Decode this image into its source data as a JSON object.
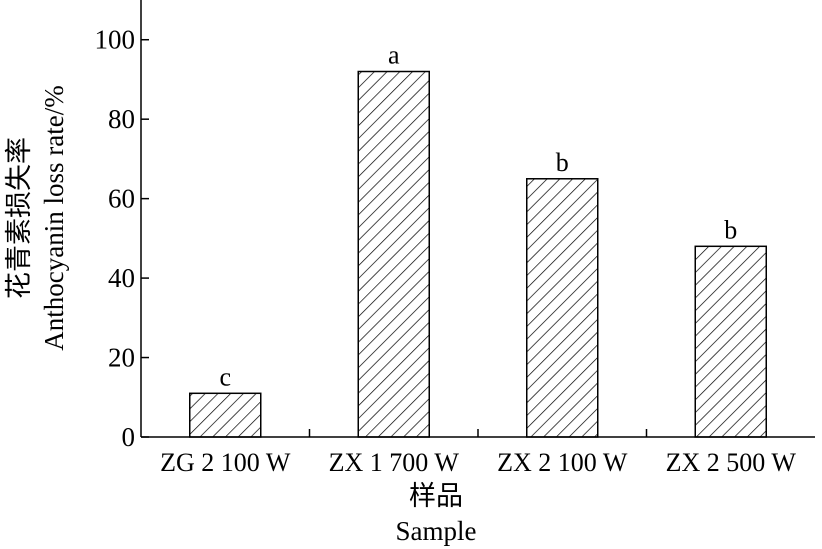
{
  "chart_data": {
    "type": "bar",
    "categories": [
      "ZG 2 100 W",
      "ZX 1 700 W",
      "ZX 2 100 W",
      "ZX 2 500 W"
    ],
    "values": [
      11,
      92,
      65,
      48
    ],
    "significance_labels": [
      "c",
      "a",
      "b",
      "b"
    ],
    "xlabel_cn": "样品",
    "xlabel": "Sample",
    "ylabel_cn": "花青素损失率",
    "ylabel": "Anthocyanin loss rate/%",
    "yticks": [
      0,
      20,
      40,
      60,
      80,
      100
    ],
    "ylim": [
      0,
      110
    ],
    "bar_fill": "hatched",
    "grid": false
  }
}
